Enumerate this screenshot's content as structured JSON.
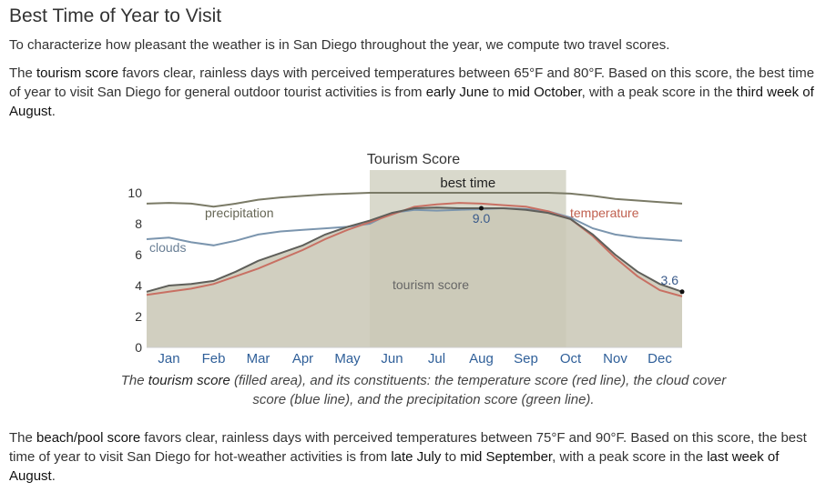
{
  "heading": "Best Time of Year to Visit",
  "intro": "To characterize how pleasant the weather is in San Diego throughout the year, we compute two travel scores.",
  "tourism_paragraph": {
    "t1": "The ",
    "score_name": "tourism score",
    "t2": " favors clear, rainless days with perceived temperatures between 65°F and 80°F. Based on this score, the best time of year to visit San Diego for general outdoor tourist activities is from ",
    "start": "early June",
    "t3": " to ",
    "end": "mid October",
    "t4": ", with a peak score in the ",
    "peak": "third week of August",
    "t5": "."
  },
  "caption": {
    "c1": "The ",
    "c_bold": "tourism score",
    "c2": " (filled area), and its constituents: the temperature score (red line), the cloud cover score (blue line), and the precipitation score (green line)."
  },
  "beach_paragraph": {
    "t1": "The ",
    "score_name": "beach/pool score",
    "t2": " favors clear, rainless days with perceived temperatures between 75°F and 90°F. Based on this score, the best time of year to visit San Diego for hot-weather activities is from ",
    "start": "late July",
    "t3": " to ",
    "end": "mid September",
    "t4": ", with a peak score in the ",
    "peak": "last week of August",
    "t5": "."
  },
  "chart_data": {
    "type": "area",
    "title": "Tourism Score",
    "x": [
      0,
      0.5,
      1,
      1.5,
      2,
      2.5,
      3,
      3.5,
      4,
      4.5,
      5,
      5.5,
      6,
      6.5,
      7,
      7.5,
      8,
      8.5,
      9,
      9.5,
      10,
      10.5,
      11,
      11.5,
      12
    ],
    "month_labels": [
      "Jan",
      "Feb",
      "Mar",
      "Apr",
      "May",
      "Jun",
      "Jul",
      "Aug",
      "Sep",
      "Oct",
      "Nov",
      "Dec"
    ],
    "ylim": [
      0,
      10
    ],
    "yticks": [
      0,
      2,
      4,
      6,
      8,
      10
    ],
    "best_time": {
      "label": "best time",
      "start": 5,
      "end": 9.4
    },
    "series": [
      {
        "name": "tourism score",
        "color": "#5f5f5a",
        "fill": "#c9c7b5",
        "values": [
          3.6,
          4.0,
          4.1,
          4.3,
          4.9,
          5.6,
          6.1,
          6.6,
          7.3,
          7.8,
          8.2,
          8.7,
          9.0,
          9.05,
          9.0,
          9.0,
          9.0,
          8.9,
          8.7,
          8.3,
          7.3,
          6.0,
          4.9,
          4.1,
          3.6
        ]
      },
      {
        "name": "temperature",
        "color": "#c87063",
        "values": [
          3.4,
          3.6,
          3.8,
          4.1,
          4.6,
          5.1,
          5.7,
          6.3,
          7.0,
          7.6,
          8.1,
          8.6,
          9.1,
          9.25,
          9.35,
          9.3,
          9.2,
          9.1,
          8.8,
          8.3,
          7.2,
          5.8,
          4.6,
          3.7,
          3.3
        ]
      },
      {
        "name": "clouds",
        "color": "#7b95ae",
        "values": [
          7.0,
          7.1,
          6.8,
          6.6,
          6.9,
          7.3,
          7.5,
          7.6,
          7.7,
          7.8,
          8.0,
          8.7,
          8.9,
          8.85,
          8.9,
          8.95,
          9.0,
          8.95,
          8.8,
          8.4,
          7.7,
          7.3,
          7.1,
          7.0,
          6.9
        ]
      },
      {
        "name": "precipitation",
        "color": "#7a7a66",
        "values": [
          9.3,
          9.35,
          9.3,
          9.1,
          9.3,
          9.55,
          9.7,
          9.8,
          9.9,
          9.95,
          10.0,
          10.0,
          10.0,
          10.0,
          10.0,
          10.0,
          10.0,
          10.0,
          10.0,
          9.95,
          9.8,
          9.6,
          9.5,
          9.4,
          9.3
        ]
      }
    ],
    "annotations": [
      {
        "text": "9.0",
        "x": 7.5,
        "y": 9.0
      },
      {
        "text": "3.6",
        "x": 12,
        "y": 3.6
      }
    ],
    "inline_labels": {
      "precipitation": "precipitation",
      "clouds": "clouds",
      "temperature": "temperature",
      "tourism": "tourism score"
    }
  }
}
